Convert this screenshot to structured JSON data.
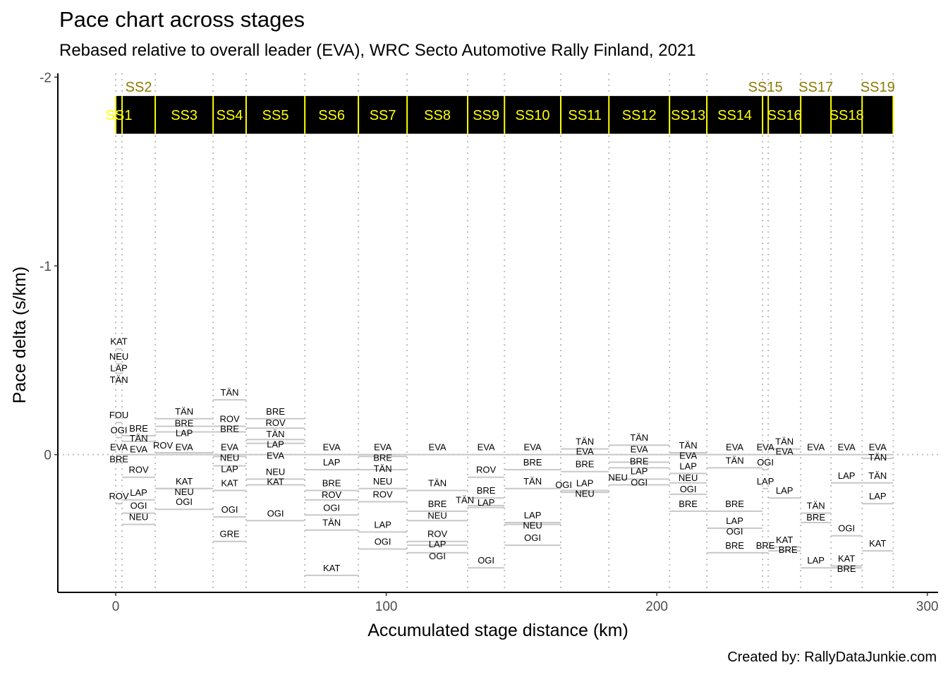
{
  "chart_data": {
    "type": "line",
    "title": "Pace chart across stages",
    "subtitle": "Rebased relative to overall leader (EVA), WRC Secto Automotive Rally Finland, 2021",
    "xlabel": "Accumulated stage distance (km)",
    "ylabel": "Pace delta (s/km)",
    "caption": "Created by: RallyDataJunkie.com",
    "xlim": [
      -21.4,
      304
    ],
    "ylim": [
      0.73,
      -2.02
    ],
    "y_reversed": true,
    "xticks": [
      0,
      100,
      200,
      300
    ],
    "yticks": [
      -2,
      -1,
      0
    ],
    "grid": false,
    "colors": {
      "segment": "#c8c8c8",
      "stage_band": "#000000",
      "stage_text": "#ffff00",
      "guide": "#bdbdbd"
    },
    "stage_band": {
      "ymin": -1.9,
      "ymax": -1.7
    },
    "stages": [
      {
        "name": "SS1",
        "start": 0,
        "end": 2.35,
        "points": [
          [
            "KAT",
            -0.56
          ],
          [
            "NEU",
            -0.48
          ],
          [
            "LAP",
            -0.43
          ],
          [
            "TÄN",
            -0.39
          ],
          [
            "FOU",
            -0.17
          ],
          [
            "OGI",
            -0.09
          ],
          [
            "EVA",
            0
          ],
          [
            "BRE",
            0.04
          ],
          [
            "ROV",
            0.26
          ]
        ]
      },
      {
        "name": "SS2",
        "start": 2.35,
        "end": 14.6,
        "points": [
          [
            "BRE",
            -0.1
          ],
          [
            "TÄN",
            -0.07
          ],
          [
            "EVA",
            0
          ],
          [
            "ROV",
            0.12
          ],
          [
            "LAP",
            0.24
          ],
          [
            "OGI",
            0.31
          ],
          [
            "NEU",
            0.37
          ]
        ]
      },
      {
        "name": "SS3",
        "start": 14.6,
        "end": 36.0,
        "points": [
          [
            "TÄN",
            -0.19
          ],
          [
            "BRE",
            -0.15
          ],
          [
            "LAP",
            -0.12
          ],
          [
            "EVA",
            0
          ],
          [
            "ROV",
            -0.01
          ],
          [
            "KAT",
            0.18
          ],
          [
            "NEU",
            0.18
          ],
          [
            "OGI",
            0.29
          ]
        ]
      },
      {
        "name": "SS4",
        "start": 36.0,
        "end": 48.2,
        "points": [
          [
            "TÄN",
            -0.29
          ],
          [
            "ROV",
            -0.15
          ],
          [
            "BRE",
            -0.12
          ],
          [
            "EVA",
            0
          ],
          [
            "NEU",
            0.01
          ],
          [
            "LAP",
            0.06
          ],
          [
            "KAT",
            0.19
          ],
          [
            "OGI",
            0.33
          ],
          [
            "GRE",
            0.46
          ]
        ]
      },
      {
        "name": "SS5",
        "start": 48.2,
        "end": 69.9,
        "points": [
          [
            "BRE",
            -0.19
          ],
          [
            "ROV",
            -0.14
          ],
          [
            "TÄN",
            -0.08
          ],
          [
            "LAP",
            -0.06
          ],
          [
            "EVA",
            0
          ],
          [
            "NEU",
            0.13
          ],
          [
            "KAT",
            0.16
          ],
          [
            "OGI",
            0.35
          ]
        ]
      },
      {
        "name": "SS6",
        "start": 69.9,
        "end": 89.7,
        "points": [
          [
            "EVA",
            0
          ],
          [
            "LAP",
            0.08
          ],
          [
            "BRE",
            0.19
          ],
          [
            "ROV",
            0.24
          ],
          [
            "OGI",
            0.32
          ],
          [
            "TÄN",
            0.4
          ],
          [
            "KAT",
            0.64
          ]
        ]
      },
      {
        "name": "SS7",
        "start": 89.7,
        "end": 107.7,
        "points": [
          [
            "EVA",
            0
          ],
          [
            "BRE",
            0.01
          ],
          [
            "TÄN",
            0.08
          ],
          [
            "NEU",
            0.18
          ],
          [
            "ROV",
            0.25
          ],
          [
            "LAP",
            0.41
          ],
          [
            "OGI",
            0.5
          ]
        ]
      },
      {
        "name": "SS8",
        "start": 107.7,
        "end": 130.1,
        "points": [
          [
            "EVA",
            0
          ],
          [
            "TÄN",
            0.19
          ],
          [
            "BRE",
            0.3
          ],
          [
            "NEU",
            0.35
          ],
          [
            "ROV",
            0.46
          ],
          [
            "LAP",
            0.48
          ],
          [
            "OGI",
            0.52
          ]
        ]
      },
      {
        "name": "SS9",
        "start": 130.1,
        "end": 143.7,
        "points": [
          [
            "EVA",
            0
          ],
          [
            "ROV",
            0.12
          ],
          [
            "BRE",
            0.23
          ],
          [
            "LAP",
            0.27
          ],
          [
            "TÄN",
            0.28
          ],
          [
            "OGI",
            0.6
          ]
        ]
      },
      {
        "name": "SS10",
        "start": 143.7,
        "end": 164.5,
        "points": [
          [
            "EVA",
            0
          ],
          [
            "BRE",
            0.08
          ],
          [
            "TÄN",
            0.18
          ],
          [
            "LAP",
            0.36
          ],
          [
            "NEU",
            0.37
          ],
          [
            "OGI",
            0.48
          ]
        ]
      },
      {
        "name": "SS11",
        "start": 164.5,
        "end": 182.3,
        "points": [
          [
            "TÄN",
            -0.03
          ],
          [
            "EVA",
            0
          ],
          [
            "BRE",
            0.09
          ],
          [
            "LAP",
            0.19
          ],
          [
            "NEU",
            0.19
          ],
          [
            "OGI",
            0.2
          ]
        ]
      },
      {
        "name": "SS12",
        "start": 182.3,
        "end": 204.7,
        "points": [
          [
            "TÄN",
            -0.05
          ],
          [
            "EVA",
            0
          ],
          [
            "BRE",
            0.04
          ],
          [
            "LAP",
            0.07
          ],
          [
            "OGI",
            0.13
          ],
          [
            "NEU",
            0.16
          ]
        ]
      },
      {
        "name": "SS13",
        "start": 204.7,
        "end": 218.5,
        "points": [
          [
            "TÄN",
            -0.01
          ],
          [
            "EVA",
            0
          ],
          [
            "LAP",
            0.1
          ],
          [
            "NEU",
            0.15
          ],
          [
            "OGI",
            0.21
          ],
          [
            "BRE",
            0.3
          ]
        ]
      },
      {
        "name": "SS14",
        "start": 218.5,
        "end": 239.1,
        "points": [
          [
            "EVA",
            0
          ],
          [
            "TÄN",
            0.07
          ],
          [
            "BRE",
            0.3
          ],
          [
            "LAP",
            0.39
          ],
          [
            "OGI",
            0.39
          ],
          [
            "BRE",
            0.52
          ]
        ]
      },
      {
        "name": "SS15",
        "start": 239.1,
        "end": 241.2,
        "points": [
          [
            "EVA",
            0
          ],
          [
            "OGI",
            0.08
          ],
          [
            "LAP",
            0.18
          ],
          [
            "BRE",
            0.52
          ]
        ]
      },
      {
        "name": "SS16",
        "start": 241.2,
        "end": 253.2,
        "points": [
          [
            "TÄN",
            -0.03
          ],
          [
            "EVA",
            0
          ],
          [
            "LAP",
            0.23
          ],
          [
            "KAT",
            0.49
          ],
          [
            "BRE",
            0.51
          ]
        ]
      },
      {
        "name": "SS17",
        "start": 253.2,
        "end": 264.4,
        "points": [
          [
            "EVA",
            0
          ],
          [
            "TÄN",
            0.31
          ],
          [
            "BRE",
            0.36
          ],
          [
            "LAP",
            0.6
          ]
        ]
      },
      {
        "name": "SS18",
        "start": 264.4,
        "end": 275.9,
        "points": [
          [
            "EVA",
            0
          ],
          [
            "LAP",
            0.15
          ],
          [
            "OGI",
            0.43
          ],
          [
            "KAT",
            0.59
          ],
          [
            "BRE",
            0.6
          ]
        ]
      },
      {
        "name": "SS19",
        "start": 275.9,
        "end": 287.4,
        "points": [
          [
            "EVA",
            0
          ],
          [
            "TÄN",
            0.02
          ],
          [
            "TÄN",
            0.15
          ],
          [
            "LAP",
            0.26
          ],
          [
            "KAT",
            0.51
          ]
        ]
      }
    ]
  }
}
